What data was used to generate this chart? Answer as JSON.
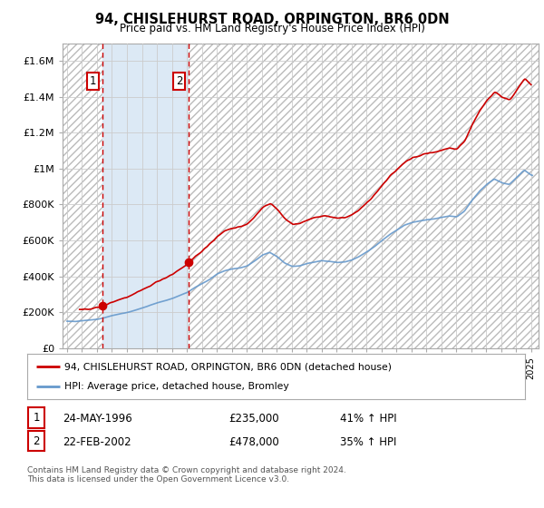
{
  "title": "94, CHISLEHURST ROAD, ORPINGTON, BR6 0DN",
  "subtitle": "Price paid vs. HM Land Registry's House Price Index (HPI)",
  "ylim": [
    0,
    1700000
  ],
  "yticks": [
    0,
    200000,
    400000,
    600000,
    800000,
    1000000,
    1200000,
    1400000,
    1600000
  ],
  "ytick_labels": [
    "£0",
    "£200K",
    "£400K",
    "£600K",
    "£800K",
    "£1M",
    "£1.2M",
    "£1.4M",
    "£1.6M"
  ],
  "xlim_start": 1993.7,
  "xlim_end": 2025.5,
  "sale1_x": 1996.39,
  "sale1_y": 235000,
  "sale2_x": 2002.13,
  "sale2_y": 478000,
  "shade_color": "#dce9f5",
  "vline_color": "#cc0000",
  "red_line_color": "#cc0000",
  "blue_line_color": "#6699cc",
  "legend_label1": "94, CHISLEHURST ROAD, ORPINGTON, BR6 0DN (detached house)",
  "legend_label2": "HPI: Average price, detached house, Bromley",
  "table_row1": [
    "1",
    "24-MAY-1996",
    "£235,000",
    "41% ↑ HPI"
  ],
  "table_row2": [
    "2",
    "22-FEB-2002",
    "£478,000",
    "35% ↑ HPI"
  ],
  "footer": "Contains HM Land Registry data © Crown copyright and database right 2024.\nThis data is licensed under the Open Government Licence v3.0.",
  "background_color": "#ffffff",
  "grid_color": "#cccccc"
}
